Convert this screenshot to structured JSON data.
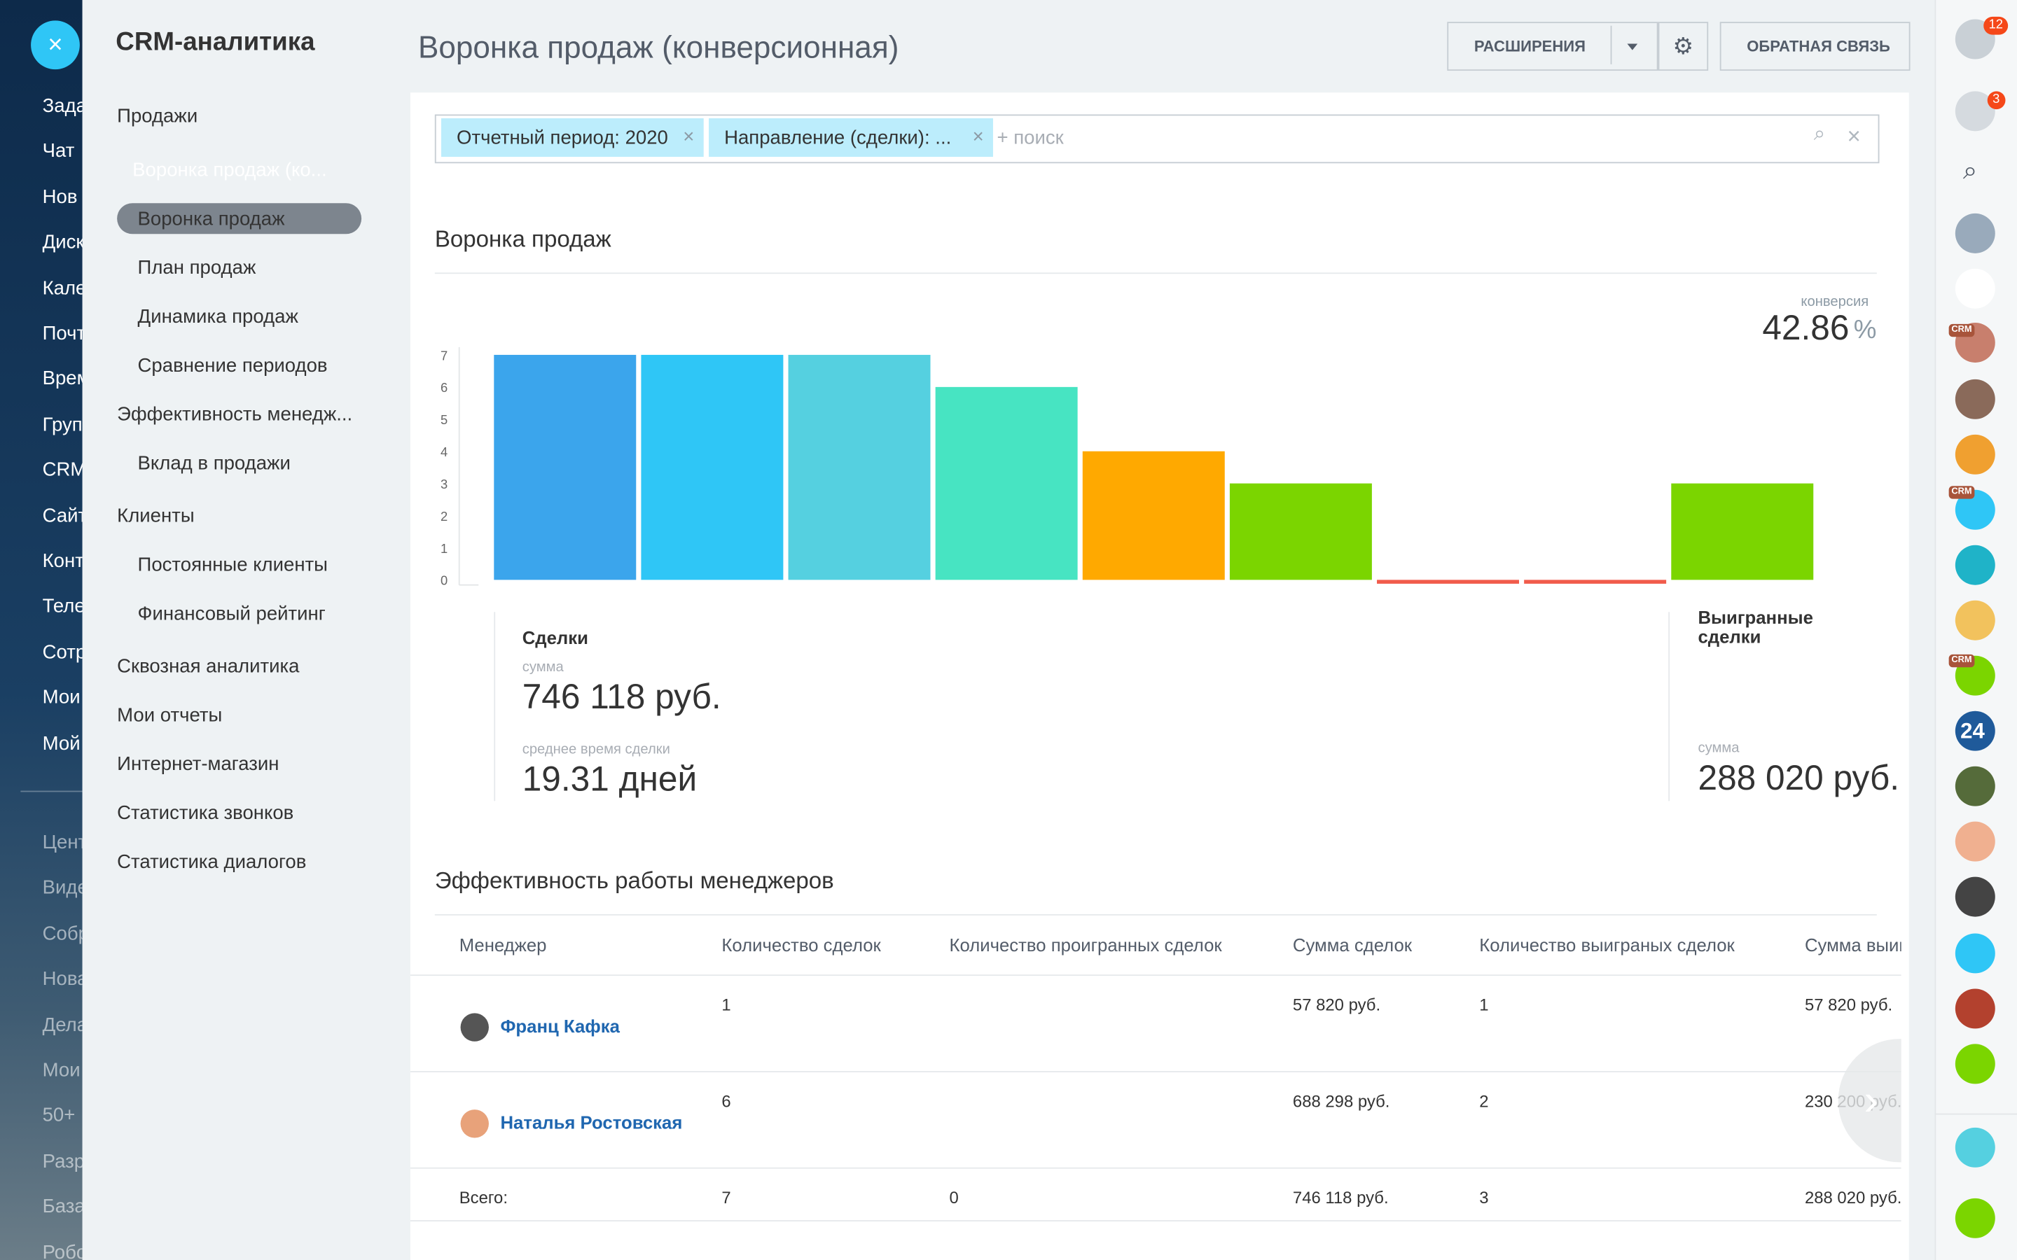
{
  "left_menu": [
    "Зада",
    "Чат",
    "Нов",
    "Диск",
    "Кале",
    "Почт",
    "Врем",
    "Груп",
    "CRM",
    "Сайт",
    "Конт",
    "Теле",
    "Сотр",
    "Мои",
    "Мой",
    "Цент",
    "Виде",
    "Собр",
    "Нова",
    "Дела",
    "Мои",
    "50+",
    "Разр",
    "База",
    "Робо"
  ],
  "nav": {
    "title": "CRM-аналитика",
    "items": [
      {
        "label": "Продажи"
      },
      {
        "label": "Воронка продаж (ко...",
        "active": true,
        "children": [
          "Воронка продаж",
          "План продаж",
          "Динамика продаж",
          "Сравнение периодов"
        ]
      },
      {
        "label": "Эффективность менедж...",
        "children": [
          "Вклад в продажи"
        ]
      },
      {
        "label": "Клиенты",
        "children": [
          "Постоянные клиенты",
          "Финансовый рейтинг"
        ]
      },
      {
        "label": "Сквозная аналитика"
      },
      {
        "label": "Мои отчеты"
      },
      {
        "label": "Интернет-магазин"
      },
      {
        "label": "Статистика звонков"
      },
      {
        "label": "Статистика диалогов"
      }
    ]
  },
  "header": {
    "title": "Воронка продаж (конверсионная)",
    "extensions_button": "РАСШИРЕНИЯ",
    "feedback_button": "ОБРАТНАЯ СВЯЗЬ"
  },
  "filter": {
    "chips": [
      "Отчетный период: 2020",
      "Направление (сделки): ..."
    ],
    "placeholder": "+ поиск"
  },
  "right_bar": {
    "help_badge": 12,
    "notif_badge": 3,
    "crm_tag": "CRM",
    "b24_label": "24"
  },
  "funnel": {
    "title": "Воронка продаж",
    "conversion_label": "конверсия",
    "conversion": 42.86,
    "conversion_unit": "%",
    "chart": {
      "type": "bar",
      "values": [
        7,
        7,
        7,
        6,
        4,
        3,
        0,
        0,
        3
      ],
      "colors": [
        "#3ba5ec",
        "#2fc6f6",
        "#55d0e0",
        "#47e4c2",
        "#ffa900",
        "#7bd500",
        "#f15b4b",
        "#f15b4b",
        "#7bd500"
      ],
      "ylim": [
        0,
        7
      ],
      "yticks": [
        0,
        1,
        2,
        3,
        4,
        5,
        6,
        7
      ]
    },
    "deals": {
      "title": "Сделки",
      "sum_label": "сумма",
      "sum": "746 118 руб.",
      "avg_time_label": "среднее время сделки",
      "avg_time": "19.31 дней"
    },
    "won": {
      "title": "Выигранные сделки",
      "sum_label": "сумма",
      "sum": "288 020 руб."
    }
  },
  "table": {
    "title": "Эффективность работы менеджеров",
    "columns": [
      "Менеджер",
      "Количество сделок",
      "Количество проигранных сделок",
      "Сумма сделок",
      "Количество выиграных сделок",
      "Сумма выиг"
    ],
    "rows": [
      {
        "manager": "Франц Кафка",
        "deals": 1,
        "lost": null,
        "sum": "57 820 руб.",
        "won": 1,
        "won_sum": "57 820 руб."
      },
      {
        "manager": "Наталья Ростовская",
        "deals": 6,
        "lost": null,
        "sum": "688 298 руб.",
        "won": 2,
        "won_sum": "230 200 руб."
      }
    ],
    "total": {
      "manager": "Всего:",
      "deals": 7,
      "lost": 0,
      "sum": "746 118 руб.",
      "won": 3,
      "won_sum": "288 020 руб."
    }
  }
}
